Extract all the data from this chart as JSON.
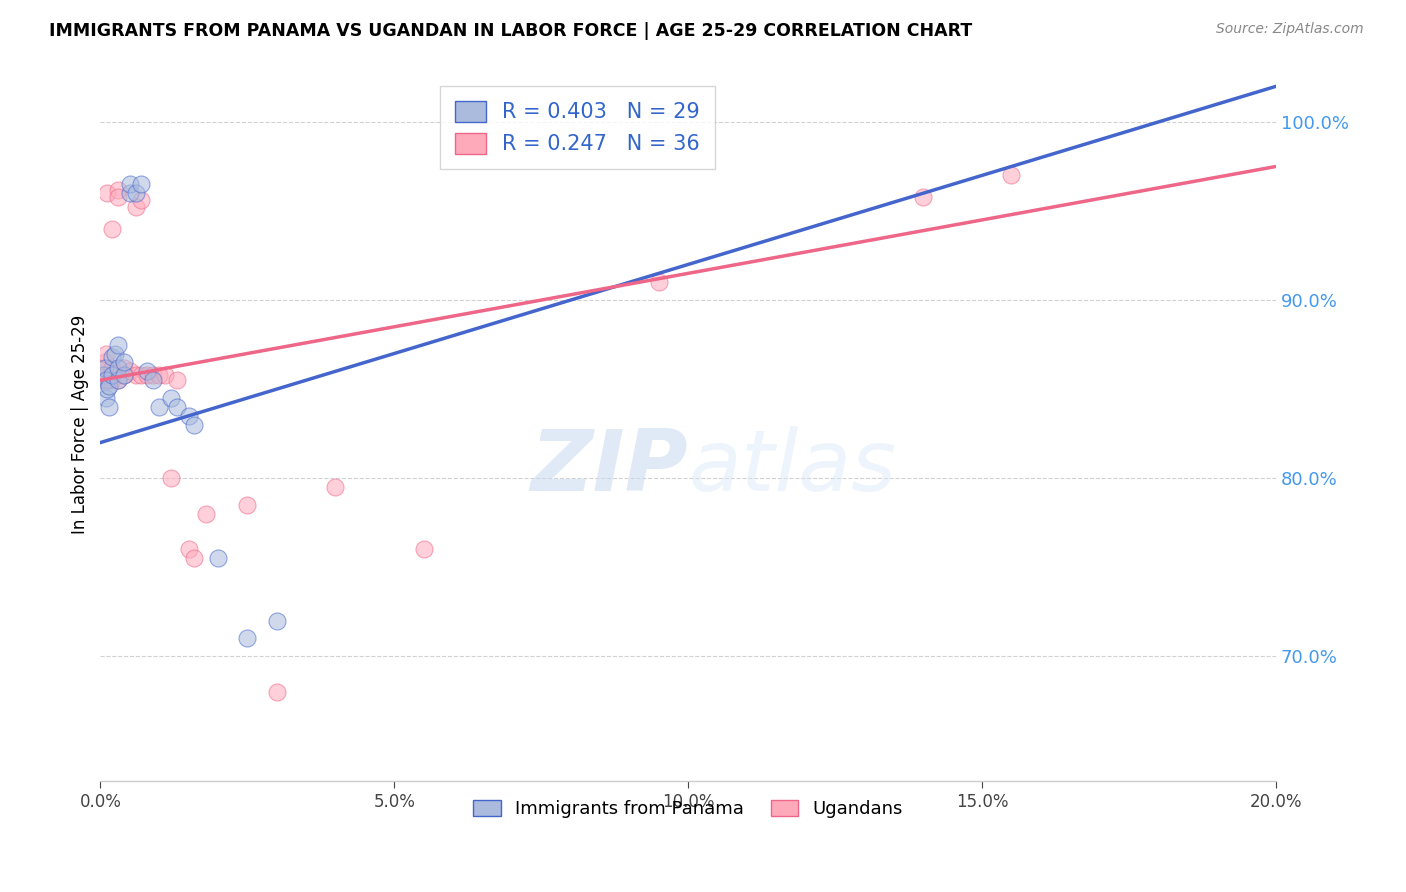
{
  "title": "IMMIGRANTS FROM PANAMA VS UGANDAN IN LABOR FORCE | AGE 25-29 CORRELATION CHART",
  "source": "Source: ZipAtlas.com",
  "ylabel": "In Labor Force | Age 25-29",
  "xlim": [
    0.0,
    0.2
  ],
  "ylim": [
    0.63,
    1.03
  ],
  "yticks": [
    0.7,
    0.8,
    0.9,
    1.0
  ],
  "xticks": [
    0.0,
    0.05,
    0.1,
    0.15,
    0.2
  ],
  "background_color": "#ffffff",
  "blue_color": "#aabbdd",
  "pink_color": "#ffaabb",
  "blue_line_color": "#4466cc",
  "pink_line_color": "#ee6688",
  "legend_blue_label": "R = 0.403   N = 29",
  "legend_pink_label": "R = 0.247   N = 36",
  "legend_label_blue": "Immigrants from Panama",
  "legend_label_pink": "Ugandans",
  "watermark_zip": "ZIP",
  "watermark_atlas": "atlas",
  "blue_x": [
    0.0005,
    0.0008,
    0.001,
    0.001,
    0.0012,
    0.0015,
    0.0015,
    0.002,
    0.002,
    0.0025,
    0.003,
    0.003,
    0.003,
    0.004,
    0.004,
    0.005,
    0.005,
    0.006,
    0.007,
    0.008,
    0.009,
    0.01,
    0.012,
    0.013,
    0.015,
    0.016,
    0.02,
    0.025,
    0.03
  ],
  "blue_y": [
    0.858,
    0.862,
    0.845,
    0.855,
    0.85,
    0.852,
    0.84,
    0.858,
    0.868,
    0.87,
    0.855,
    0.862,
    0.875,
    0.858,
    0.865,
    0.96,
    0.965,
    0.96,
    0.965,
    0.86,
    0.855,
    0.84,
    0.845,
    0.84,
    0.835,
    0.83,
    0.755,
    0.71,
    0.72
  ],
  "pink_x": [
    0.0003,
    0.0005,
    0.0008,
    0.001,
    0.001,
    0.0012,
    0.0015,
    0.002,
    0.002,
    0.002,
    0.003,
    0.003,
    0.003,
    0.004,
    0.004,
    0.005,
    0.006,
    0.006,
    0.007,
    0.007,
    0.008,
    0.009,
    0.01,
    0.011,
    0.012,
    0.013,
    0.015,
    0.016,
    0.018,
    0.025,
    0.03,
    0.04,
    0.055,
    0.095,
    0.14,
    0.155
  ],
  "pink_y": [
    0.855,
    0.862,
    0.865,
    0.858,
    0.87,
    0.96,
    0.855,
    0.855,
    0.862,
    0.94,
    0.855,
    0.962,
    0.958,
    0.858,
    0.862,
    0.86,
    0.858,
    0.952,
    0.858,
    0.956,
    0.858,
    0.858,
    0.858,
    0.858,
    0.8,
    0.855,
    0.76,
    0.755,
    0.78,
    0.785,
    0.68,
    0.795,
    0.76,
    0.91,
    0.958,
    0.97
  ],
  "blue_trend_x": [
    0.0,
    0.2
  ],
  "blue_trend_y": [
    0.82,
    1.02
  ],
  "pink_trend_x": [
    0.0,
    0.2
  ],
  "pink_trend_y": [
    0.855,
    0.975
  ]
}
